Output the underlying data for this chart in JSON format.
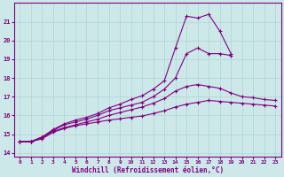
{
  "xlabel": "Windchill (Refroidissement éolien,°C)",
  "bg_color": "#cde8e8",
  "line_color": "#800080",
  "grid_color": "#afd4d4",
  "xlim": [
    -0.5,
    23.5
  ],
  "ylim": [
    13.8,
    22.0
  ],
  "yticks": [
    14,
    15,
    16,
    17,
    18,
    19,
    20,
    21
  ],
  "xticks": [
    0,
    1,
    2,
    3,
    4,
    5,
    6,
    7,
    8,
    9,
    10,
    11,
    12,
    13,
    14,
    15,
    16,
    17,
    18,
    19,
    20,
    21,
    22,
    23
  ],
  "series": [
    {
      "x": [
        0,
        1,
        2,
        3,
        4,
        5,
        6,
        7,
        8,
        9,
        10,
        11,
        12,
        13,
        14,
        15,
        16,
        17,
        18,
        19,
        20,
        21,
        22,
        23
      ],
      "y": [
        14.6,
        14.6,
        14.75,
        15.1,
        15.3,
        15.45,
        15.55,
        15.65,
        15.75,
        15.82,
        15.9,
        15.97,
        16.1,
        16.25,
        16.45,
        16.6,
        16.7,
        16.8,
        16.75,
        16.7,
        16.65,
        16.6,
        16.55,
        16.5
      ]
    },
    {
      "x": [
        0,
        1,
        2,
        3,
        4,
        5,
        6,
        7,
        8,
        9,
        10,
        11,
        12,
        13,
        14,
        15,
        16,
        17,
        18,
        19,
        20,
        21,
        22,
        23
      ],
      "y": [
        14.6,
        14.6,
        14.8,
        15.15,
        15.35,
        15.5,
        15.65,
        15.8,
        16.0,
        16.15,
        16.3,
        16.45,
        16.65,
        16.9,
        17.3,
        17.55,
        17.65,
        17.55,
        17.45,
        17.2,
        17.0,
        16.95,
        16.85,
        16.8
      ]
    },
    {
      "x": [
        0,
        1,
        2,
        3,
        4,
        5,
        6,
        7,
        8,
        9,
        10,
        11,
        12,
        13,
        14,
        15,
        16,
        17,
        18,
        19,
        20,
        21,
        22,
        23
      ],
      "y": [
        14.6,
        14.6,
        14.85,
        15.2,
        15.5,
        15.65,
        15.8,
        16.0,
        16.25,
        16.4,
        16.55,
        16.7,
        17.0,
        17.4,
        18.0,
        19.3,
        19.6,
        19.3,
        19.3,
        19.2,
        null,
        null,
        null,
        null
      ]
    },
    {
      "x": [
        0,
        1,
        2,
        3,
        4,
        5,
        6,
        7,
        8,
        9,
        10,
        11,
        12,
        13,
        14,
        15,
        16,
        17,
        18,
        19
      ],
      "y": [
        14.6,
        14.6,
        14.85,
        15.25,
        15.55,
        15.75,
        15.9,
        16.1,
        16.4,
        16.6,
        16.85,
        17.05,
        17.4,
        17.85,
        19.6,
        21.3,
        21.2,
        21.4,
        20.5,
        19.3
      ]
    }
  ]
}
